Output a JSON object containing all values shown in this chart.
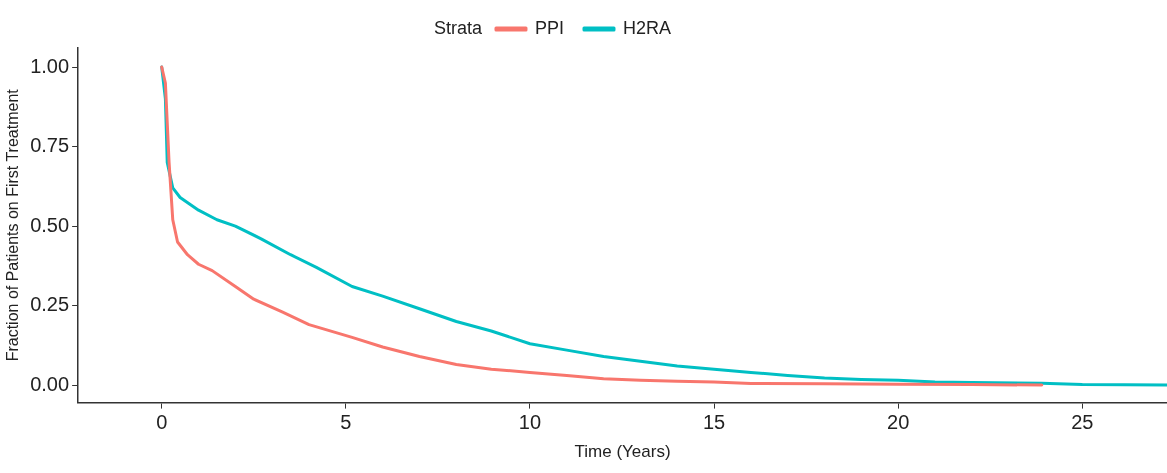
{
  "chart_data": {
    "type": "line",
    "xlabel": "Time (Years)",
    "ylabel": "Fraction of Patients on First Treatment",
    "legend_title": "Strata",
    "legend": "top",
    "marker": "none",
    "line_style": "solid",
    "grid": false,
    "xlim": [
      -2.27,
      27.3
    ],
    "xticks": [
      0,
      5,
      10,
      15,
      20,
      25
    ],
    "ylim": [
      -0.055,
      1.06
    ],
    "yticks": [
      {
        "value": 0,
        "label": "0.00"
      },
      {
        "value": 0.25,
        "label": "0.25"
      },
      {
        "value": 0.5,
        "label": "0.50"
      },
      {
        "value": 0.75,
        "label": "0.75"
      },
      {
        "value": 1,
        "label": "1.00"
      }
    ],
    "series": [
      {
        "name": "PPI",
        "color": "#f8766d",
        "x": [
          0,
          0.1,
          0.2,
          0.3,
          0.43,
          0.7,
          1,
          1.37,
          2,
          2.5,
          3.27,
          4,
          5.17,
          6,
          7,
          8,
          8.95,
          10,
          11,
          12,
          13,
          14,
          15,
          16,
          18,
          20,
          22,
          23.9
        ],
        "values": [
          1,
          0.95,
          0.7,
          0.52,
          0.45,
          0.41,
          0.38,
          0.36,
          0.31,
          0.27,
          0.23,
          0.19,
          0.15,
          0.12,
          0.09,
          0.065,
          0.05,
          0.04,
          0.03,
          0.02,
          0.015,
          0.012,
          0.01,
          0.005,
          0.004,
          0.003,
          0.002,
          0
        ]
      },
      {
        "name": "H2RA",
        "color": "#00bfc4",
        "x": [
          0,
          0.1,
          0.15,
          0.3,
          0.5,
          1,
          1.5,
          2,
          2.7,
          3.5,
          4.2,
          5.17,
          6,
          7,
          8,
          8.95,
          10,
          11,
          12,
          13,
          14,
          15,
          16,
          17,
          18,
          19,
          20,
          21,
          22,
          23.9,
          25,
          27.3
        ],
        "values": [
          1,
          0.9,
          0.7,
          0.62,
          0.59,
          0.55,
          0.52,
          0.5,
          0.46,
          0.41,
          0.37,
          0.31,
          0.28,
          0.24,
          0.2,
          0.17,
          0.13,
          0.11,
          0.09,
          0.075,
          0.06,
          0.05,
          0.04,
          0.03,
          0.022,
          0.018,
          0.015,
          0.01,
          0.008,
          0.006,
          0.002,
          0
        ]
      }
    ]
  }
}
